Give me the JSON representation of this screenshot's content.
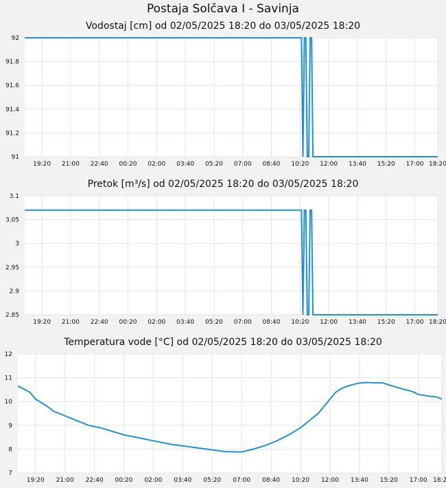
{
  "page": {
    "title": "Postaja Solčava I - Savinja"
  },
  "colors": {
    "line": "#1f8fd8",
    "grid": "#e4e4e4",
    "plot_bg": "#ffffff",
    "page_bg": "#f2f2f2"
  },
  "chart_data": [
    {
      "type": "line",
      "title": "Vodostaj [cm] od 02/05/2025 18:20 do 03/05/2025 18:20",
      "xlabel": "",
      "ylabel": "",
      "x_start": "02/05/2025 18:20",
      "x_end": "03/05/2025 18:20",
      "x_ticks": [
        "19:20",
        "21:00",
        "22:40",
        "00:20",
        "02:00",
        "03:40",
        "05:20",
        "07:00",
        "08:40",
        "10:20",
        "12:00",
        "13:40",
        "15:20",
        "17:00",
        "18:20"
      ],
      "y_ticks": [
        "92",
        "91.8",
        "91.6",
        "91.4",
        "91.2",
        "91"
      ],
      "ylim": [
        91,
        92
      ],
      "grid": true,
      "series": [
        {
          "x": [
            "18:20",
            "10:20",
            "10:25",
            "10:30",
            "10:35",
            "10:40",
            "10:45",
            "10:50",
            "10:55",
            "11:00",
            "11:05",
            "11:10",
            "11:15",
            "11:20",
            "11:25",
            "11:30",
            "11:35",
            "18:20"
          ],
          "values": [
            92,
            92,
            92,
            91,
            92,
            92,
            91,
            91,
            92,
            92,
            91,
            91,
            91,
            91,
            91,
            91,
            91,
            91
          ]
        }
      ]
    },
    {
      "type": "line",
      "title": "Pretok [m³/s] od 02/05/2025 18:20 do 03/05/2025 18:20",
      "xlabel": "",
      "ylabel": "",
      "x_start": "02/05/2025 18:20",
      "x_end": "03/05/2025 18:20",
      "x_ticks": [
        "19:20",
        "21:00",
        "22:40",
        "00:20",
        "02:00",
        "03:40",
        "05:20",
        "07:00",
        "08:40",
        "10:20",
        "12:00",
        "13:40",
        "15:20",
        "17:00",
        "18:20"
      ],
      "y_ticks": [
        "3.1",
        "3.05",
        "3",
        "2.95",
        "2.9",
        "2.85"
      ],
      "ylim": [
        2.85,
        3.1
      ],
      "grid": true,
      "series": [
        {
          "x": [
            "18:20",
            "10:20",
            "10:25",
            "10:30",
            "10:35",
            "10:40",
            "10:45",
            "10:50",
            "10:55",
            "11:00",
            "11:05",
            "11:10",
            "11:15",
            "11:20",
            "11:25",
            "11:30",
            "11:35",
            "18:20"
          ],
          "values": [
            3.07,
            3.07,
            3.07,
            2.85,
            3.07,
            3.07,
            2.85,
            2.85,
            3.07,
            3.07,
            2.85,
            2.85,
            2.85,
            2.85,
            2.85,
            2.85,
            2.85,
            2.85
          ]
        }
      ]
    },
    {
      "type": "line",
      "title": "Temperatura vode [°C] od 02/05/2025 18:20 do 03/05/2025 18:20",
      "xlabel": "",
      "ylabel": "",
      "x_start": "02/05/2025 18:20",
      "x_end": "03/05/2025 18:20",
      "x_ticks": [
        "19:20",
        "21:00",
        "22:40",
        "00:20",
        "02:00",
        "03:40",
        "05:20",
        "07:00",
        "08:40",
        "10:20",
        "12:00",
        "13:40",
        "15:20",
        "17:00",
        "18:20"
      ],
      "y_ticks": [
        "12",
        "11",
        "10",
        "9",
        "8",
        "7"
      ],
      "ylim": [
        7,
        12
      ],
      "grid": true,
      "series": [
        {
          "x": [
            "18:20",
            "19:00",
            "19:20",
            "20:00",
            "20:20",
            "21:00",
            "21:40",
            "22:20",
            "23:00",
            "23:40",
            "00:20",
            "01:00",
            "02:00",
            "03:00",
            "04:00",
            "05:00",
            "06:00",
            "07:00",
            "07:40",
            "08:20",
            "09:00",
            "09:40",
            "10:20",
            "11:00",
            "11:20",
            "11:40",
            "12:00",
            "12:20",
            "12:40",
            "13:00",
            "13:20",
            "13:40",
            "14:00",
            "15:00",
            "15:20",
            "16:00",
            "16:40",
            "17:00",
            "17:40",
            "18:00",
            "18:20"
          ],
          "values": [
            10.65,
            10.4,
            10.1,
            9.8,
            9.6,
            9.4,
            9.2,
            9.0,
            8.9,
            8.75,
            8.6,
            8.5,
            8.35,
            8.2,
            8.1,
            8.0,
            7.9,
            7.88,
            8.0,
            8.15,
            8.35,
            8.6,
            8.9,
            9.3,
            9.5,
            9.8,
            10.1,
            10.4,
            10.55,
            10.65,
            10.72,
            10.78,
            10.8,
            10.78,
            10.7,
            10.55,
            10.42,
            10.3,
            10.22,
            10.2,
            10.1
          ]
        }
      ]
    }
  ]
}
